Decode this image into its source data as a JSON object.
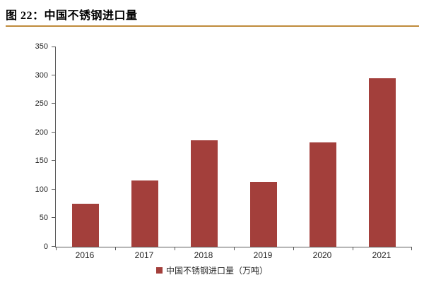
{
  "header": {
    "title": "图 22：中国不锈钢进口量"
  },
  "chart_data": {
    "type": "bar",
    "title": "图 22：中国不锈钢进口量",
    "categories": [
      "2016",
      "2017",
      "2018",
      "2019",
      "2020",
      "2021"
    ],
    "series": [
      {
        "name": "中国不锈钢进口量（万吨）",
        "values": [
          75,
          116,
          186,
          113,
          182,
          295
        ]
      }
    ],
    "legend": "中国不锈钢进口量（万吨）",
    "legend_position": "bottom",
    "xlabel": "",
    "ylabel": "",
    "ylim": [
      0,
      350
    ],
    "yticks": [
      0,
      50,
      100,
      150,
      200,
      250,
      300,
      350
    ],
    "grid": false,
    "colors": {
      "bar": "#A33F3B",
      "axis": "#595959",
      "tick_label": "#262626",
      "title_rule": "#BF8B3B"
    }
  }
}
